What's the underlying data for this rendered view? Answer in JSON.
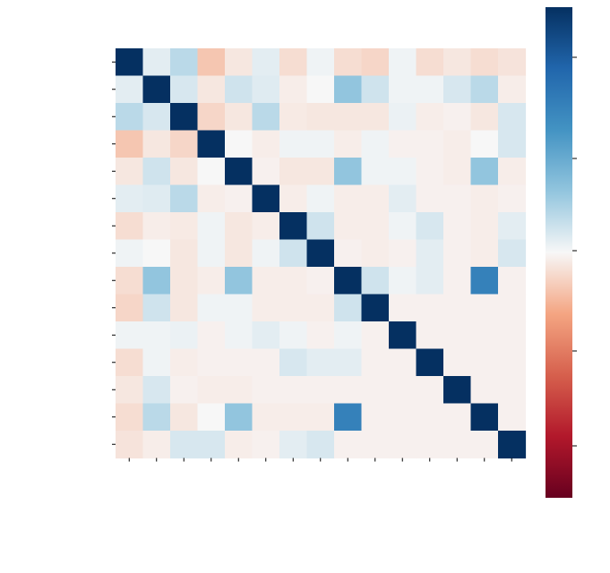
{
  "chart_data": {
    "type": "heatmap",
    "title": "",
    "row_labels": [
      "",
      "",
      "",
      "",
      "",
      "",
      "",
      "",
      "",
      "",
      "",
      "",
      "",
      "",
      ""
    ],
    "col_labels": [
      "",
      "",
      "",
      "",
      "",
      "",
      "",
      "",
      "",
      "",
      "",
      "",
      "",
      "",
      ""
    ],
    "matrix": [
      [
        1.0,
        0.05,
        0.15,
        -0.15,
        -0.05,
        0.05,
        -0.08,
        0.02,
        -0.08,
        -0.1,
        0.02,
        -0.08,
        -0.05,
        -0.08,
        -0.06
      ],
      [
        0.05,
        1.0,
        0.08,
        -0.05,
        0.1,
        0.06,
        -0.03,
        0.0,
        0.25,
        0.1,
        0.02,
        0.02,
        0.08,
        0.15,
        -0.03
      ],
      [
        0.15,
        0.08,
        1.0,
        -0.1,
        -0.05,
        0.15,
        -0.04,
        -0.05,
        -0.05,
        -0.05,
        0.03,
        -0.03,
        -0.02,
        -0.05,
        0.08
      ],
      [
        -0.15,
        -0.05,
        -0.1,
        1.0,
        0.0,
        -0.03,
        0.02,
        0.02,
        -0.03,
        0.02,
        -0.02,
        -0.02,
        -0.03,
        0.0,
        0.08
      ],
      [
        -0.05,
        0.1,
        -0.05,
        0.0,
        1.0,
        -0.02,
        -0.05,
        -0.05,
        0.25,
        0.02,
        0.02,
        -0.02,
        -0.03,
        0.25,
        -0.03
      ],
      [
        0.05,
        0.06,
        0.15,
        -0.03,
        -0.02,
        1.0,
        -0.03,
        0.02,
        -0.03,
        -0.03,
        0.05,
        -0.02,
        -0.02,
        -0.03,
        -0.02
      ],
      [
        -0.08,
        -0.03,
        -0.04,
        0.02,
        -0.05,
        -0.03,
        1.0,
        0.1,
        -0.03,
        -0.03,
        0.02,
        0.08,
        -0.02,
        -0.03,
        0.05
      ],
      [
        0.02,
        0.0,
        -0.05,
        0.02,
        -0.05,
        0.02,
        0.1,
        1.0,
        -0.02,
        -0.03,
        -0.02,
        0.05,
        -0.02,
        -0.03,
        0.08
      ],
      [
        -0.08,
        0.25,
        -0.05,
        -0.03,
        0.25,
        -0.03,
        -0.03,
        -0.02,
        1.0,
        0.1,
        0.02,
        0.05,
        -0.02,
        0.6,
        -0.02
      ],
      [
        -0.1,
        0.1,
        -0.05,
        0.02,
        0.02,
        -0.03,
        -0.03,
        -0.03,
        0.1,
        1.0,
        -0.02,
        -0.02,
        -0.02,
        -0.02,
        -0.02
      ],
      [
        0.02,
        0.02,
        0.03,
        -0.02,
        0.02,
        0.05,
        0.02,
        -0.02,
        0.02,
        -0.02,
        1.0,
        -0.02,
        -0.02,
        -0.02,
        -0.02
      ],
      [
        -0.08,
        0.02,
        -0.03,
        -0.02,
        -0.02,
        -0.02,
        0.08,
        0.05,
        0.05,
        -0.02,
        -0.02,
        1.0,
        -0.02,
        -0.02,
        -0.02
      ],
      [
        -0.05,
        0.08,
        -0.02,
        -0.03,
        -0.03,
        -0.02,
        -0.02,
        -0.02,
        -0.02,
        -0.02,
        -0.02,
        -0.02,
        1.0,
        -0.02,
        -0.02
      ],
      [
        -0.08,
        0.15,
        -0.05,
        0.0,
        0.25,
        -0.03,
        -0.03,
        -0.03,
        0.6,
        -0.02,
        -0.02,
        -0.02,
        -0.02,
        1.0,
        -0.02
      ],
      [
        -0.06,
        -0.03,
        0.08,
        0.08,
        -0.03,
        -0.02,
        0.05,
        0.08,
        -0.02,
        -0.02,
        -0.02,
        -0.02,
        -0.02,
        -0.02,
        1.0
      ]
    ],
    "colorbar": {
      "cmap": "RdBu",
      "vmin": -1.0,
      "vmax": 1.0,
      "ticks": [
        "",
        "",
        "",
        "",
        ""
      ]
    },
    "grid": false,
    "legend": "colorbar-right"
  }
}
